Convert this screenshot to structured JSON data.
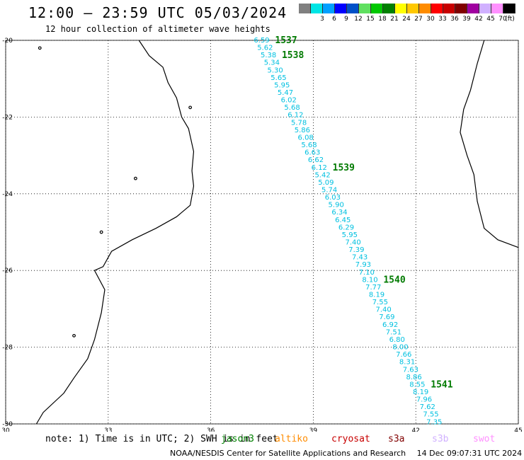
{
  "header": {
    "title": "12:00 — 23:59 UTC 05/03/2024",
    "subtitle": "12 hour collection of altimeter wave heights"
  },
  "colorbar": {
    "unit": "(ft)",
    "swatches": [
      {
        "color": "#808080",
        "label": ""
      },
      {
        "color": "#00e5e5",
        "label": "3"
      },
      {
        "color": "#00a0ff",
        "label": "6"
      },
      {
        "color": "#0000ff",
        "label": "9"
      },
      {
        "color": "#0050c8",
        "label": "12"
      },
      {
        "color": "#60e060",
        "label": "15"
      },
      {
        "color": "#00c800",
        "label": "18"
      },
      {
        "color": "#008000",
        "label": "21"
      },
      {
        "color": "#ffff00",
        "label": "24"
      },
      {
        "color": "#ffc800",
        "label": "27"
      },
      {
        "color": "#ff8c00",
        "label": "30"
      },
      {
        "color": "#ff0000",
        "label": "33"
      },
      {
        "color": "#c80000",
        "label": "36"
      },
      {
        "color": "#800000",
        "label": "39"
      },
      {
        "color": "#a000a0",
        "label": "42"
      },
      {
        "color": "#d0b0ff",
        "label": "45"
      },
      {
        "color": "#ff90ff",
        "label": "70"
      },
      {
        "color": "#000000",
        "label": ""
      }
    ]
  },
  "map": {
    "x_ticks": [
      "30",
      "33",
      "36",
      "39",
      "42",
      "45"
    ],
    "y_ticks": [
      "-20",
      "-22",
      "-24",
      "-26",
      "-28",
      "-30"
    ],
    "colors": {
      "track": "#00c0e0",
      "time_label": "#007a00",
      "coast": "#000000",
      "grid": "#000000"
    },
    "swh_values": [
      "6.59",
      "5.62",
      "5.38",
      "5.34",
      "5.30",
      "5.65",
      "5.95",
      "5.47",
      "6.02",
      "5.68",
      "6.12",
      "5.78",
      "5.86",
      "6.08",
      "5.68",
      "6.63",
      "6.62",
      "6.12",
      "5.42",
      "5.09",
      "5.74",
      "6.03",
      "5.90",
      "6.34",
      "6.45",
      "6.29",
      "5.95",
      "7.40",
      "7.39",
      "7.43",
      "7.93",
      "7.10",
      "8.10",
      "7.77",
      "8.19",
      "7.55",
      "7.40",
      "7.69",
      "6.92",
      "7.51",
      "6.80",
      "8.00",
      "7.66",
      "8.31",
      "7.63",
      "8.86",
      "8.55",
      "8.19",
      "7.96",
      "7.62",
      "7.55",
      "7.35"
    ],
    "time_labels": [
      "1537",
      "1538",
      "1539",
      "1540",
      "1541"
    ]
  },
  "note": {
    "text": "note: 1) Time is in UTC; 2) SWH is in feet"
  },
  "satellites": [
    {
      "name": "jason3",
      "color": "#008000"
    },
    {
      "name": "altiko",
      "color": "#ff8c00"
    },
    {
      "name": "cryosat",
      "color": "#c80000"
    },
    {
      "name": "s3a",
      "color": "#800000"
    },
    {
      "name": "s3b",
      "color": "#d0b0ff"
    },
    {
      "name": "swot",
      "color": "#ff90ff"
    }
  ],
  "footer": {
    "credit": "NOAA/NESDIS Center for Satellite Applications and Research",
    "timestamp": "14 Dec 09:07:31 UTC 2024"
  }
}
